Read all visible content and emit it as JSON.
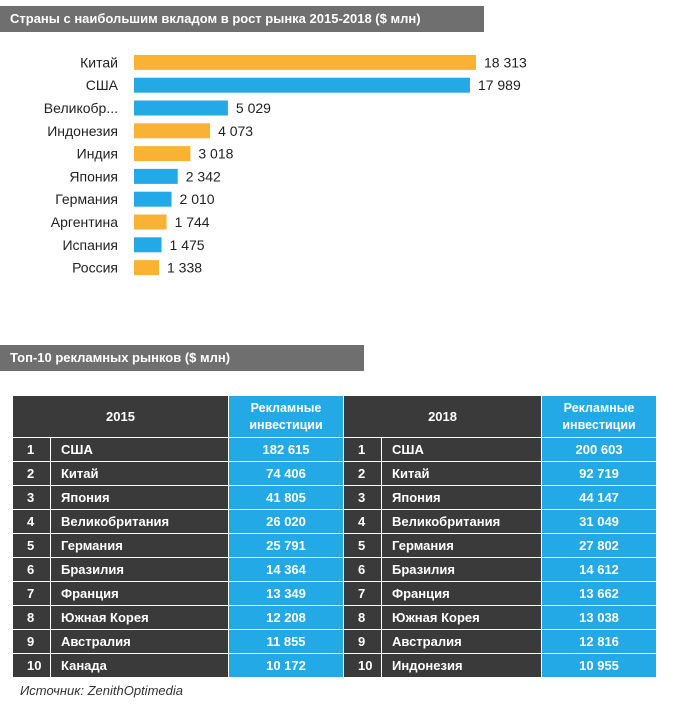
{
  "chart_data": {
    "type": "bar",
    "orientation": "horizontal",
    "title": "Страны с наибольшим вкладом в рост рынка 2015-2018 ($ млн)",
    "categories": [
      "Китай",
      "США",
      "Великобр...",
      "Индонезия",
      "Индия",
      "Япония",
      "Германия",
      "Аргентина",
      "Испания",
      "Россия"
    ],
    "values": [
      18313,
      17989,
      5029,
      4073,
      3018,
      2342,
      2010,
      1744,
      1475,
      1338
    ],
    "value_labels": [
      "18 313",
      "17 989",
      "5 029",
      "4 073",
      "3 018",
      "2 342",
      "2 010",
      "1 744",
      "1 475",
      "1 338"
    ],
    "bar_colors": [
      "#f9b233",
      "#22a9e6",
      "#22a9e6",
      "#f9b233",
      "#f9b233",
      "#22a9e6",
      "#22a9e6",
      "#f9b233",
      "#22a9e6",
      "#f9b233"
    ],
    "xlim": [
      0,
      18313
    ],
    "grid": false,
    "xlabel": "",
    "ylabel": ""
  },
  "table": {
    "title": "Топ-10 рекламных рынков ($ млн)",
    "header": {
      "year_left": "2015",
      "year_right": "2018",
      "inv_line1": "Рекламные",
      "inv_line2": "инвестиции"
    },
    "rows": [
      {
        "n": "1",
        "c2015": "США",
        "v2015": "182 615",
        "n2": "1",
        "c2018": "США",
        "v2018": "200 603"
      },
      {
        "n": "2",
        "c2015": "Китай",
        "v2015": "74 406",
        "n2": "2",
        "c2018": "Китай",
        "v2018": "92 719"
      },
      {
        "n": "3",
        "c2015": "Япония",
        "v2015": "41 805",
        "n2": "3",
        "c2018": "Япония",
        "v2018": "44 147"
      },
      {
        "n": "4",
        "c2015": "Великобритания",
        "v2015": "26 020",
        "n2": "4",
        "c2018": "Великобритания",
        "v2018": "31 049"
      },
      {
        "n": "5",
        "c2015": "Германия",
        "v2015": "25 791",
        "n2": "5",
        "c2018": "Германия",
        "v2018": "27 802"
      },
      {
        "n": "6",
        "c2015": "Бразилия",
        "v2015": "14 364",
        "n2": "6",
        "c2018": "Бразилия",
        "v2018": "14 612"
      },
      {
        "n": "7",
        "c2015": "Франция",
        "v2015": "13 349",
        "n2": "7",
        "c2018": "Франция",
        "v2018": "13 662"
      },
      {
        "n": "8",
        "c2015": "Южная Корея",
        "v2015": "12 208",
        "n2": "8",
        "c2018": "Южная Корея",
        "v2018": "13 038"
      },
      {
        "n": "9",
        "c2015": "Австралия",
        "v2015": "11 855",
        "n2": "9",
        "c2018": "Австралия",
        "v2018": "12 816"
      },
      {
        "n": "10",
        "c2015": "Канада",
        "v2015": "10 172",
        "n2": "10",
        "c2018": "Индонезия",
        "v2018": "10 955"
      }
    ]
  },
  "source": "Источник: ZenithOptimedia",
  "colors": {
    "header_bg": "#6f6f6f",
    "dark": "#3a3a3a",
    "blue": "#22a9e6",
    "orange": "#f9b233"
  }
}
